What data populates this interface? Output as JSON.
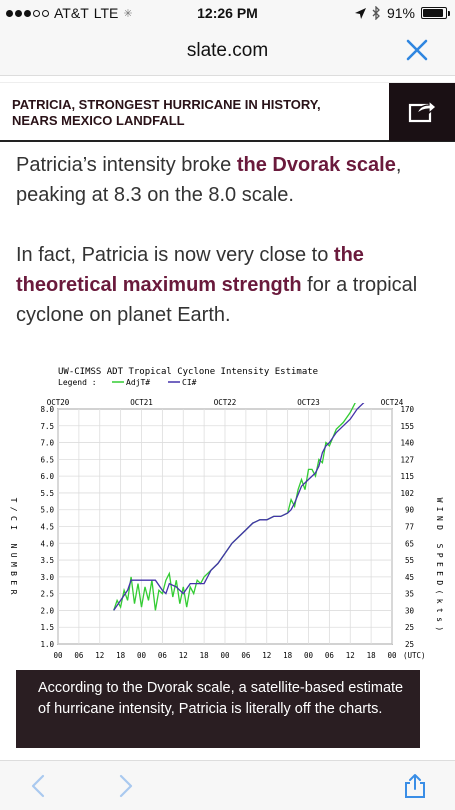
{
  "status": {
    "carrier": "AT&T",
    "network": "LTE",
    "time": "12:26 PM",
    "battery": "91%",
    "battery_level": 0.91
  },
  "browser": {
    "url": "slate.com"
  },
  "article": {
    "title_line1": "PATRICIA, STRONGEST HURRICANE IN HISTORY,",
    "title_line2": "NEARS MEXICO LANDFALL",
    "p1_a": "Patricia’s intensity broke ",
    "p1_link": "the Dvorak scale",
    "p1_b": ", peaking at 8.3 on the 8.0 scale.",
    "p2_a": "In fact, Patricia is now very close to ",
    "p2_link": "the theoretical maximum strength",
    "p2_b": " for a tropical cyclone on planet Earth.",
    "caption": "According to the Dvorak scale, a satellite-based estimate of hurricane intensity, Patricia is literally off the charts."
  },
  "colors": {
    "link": "#6a1a3c",
    "adjt": "#33cc33",
    "ci": "#4433aa",
    "caption_bg": "#2a1e22",
    "nav": "#3a8ee6"
  },
  "chart_data": {
    "type": "line",
    "title": "UW-CIMSS ADT Tropical Cyclone Intensity Estimate",
    "legend_label": "Legend :",
    "ylabel": "T/CI NUMBER",
    "y2label": "WIND SPEED(kts)",
    "xlabel_suffix": "(UTC)",
    "ylim": [
      1.0,
      8.0
    ],
    "y_ticks": [
      "1.0",
      "1.5",
      "2.0",
      "2.5",
      "3.0",
      "3.5",
      "4.0",
      "4.5",
      "5.0",
      "5.5",
      "6.0",
      "6.5",
      "7.0",
      "7.5",
      "8.0"
    ],
    "y2_ticks": [
      "25",
      "25",
      "30",
      "35",
      "45",
      "55",
      "65",
      "77",
      "90",
      "102",
      "115",
      "127",
      "140",
      "155",
      "170"
    ],
    "x_hours": [
      "00",
      "06",
      "12",
      "18",
      "00",
      "06",
      "12",
      "18",
      "00",
      "06",
      "12",
      "18",
      "00",
      "06",
      "12",
      "18",
      "00"
    ],
    "date_labels": [
      {
        "label": "OCT20",
        "hour": 0
      },
      {
        "label": "OCT21",
        "hour": 24
      },
      {
        "label": "OCT22",
        "hour": 48
      },
      {
        "label": "OCT23",
        "hour": 72
      },
      {
        "label": "OCT24",
        "hour": 96
      }
    ],
    "series": [
      {
        "name": "AdjT#",
        "points": [
          [
            16,
            2.0
          ],
          [
            17,
            2.3
          ],
          [
            18,
            2.1
          ],
          [
            19,
            2.6
          ],
          [
            20,
            2.3
          ],
          [
            21,
            3.0
          ],
          [
            22,
            2.2
          ],
          [
            23,
            2.8
          ],
          [
            24,
            2.1
          ],
          [
            25,
            2.7
          ],
          [
            26,
            2.3
          ],
          [
            27,
            2.9
          ],
          [
            28,
            2.0
          ],
          [
            29,
            2.6
          ],
          [
            30,
            2.5
          ],
          [
            31,
            2.9
          ],
          [
            32,
            3.1
          ],
          [
            33,
            2.4
          ],
          [
            34,
            2.9
          ],
          [
            35,
            2.2
          ],
          [
            36,
            2.7
          ],
          [
            37,
            2.1
          ],
          [
            38,
            2.7
          ],
          [
            39,
            2.5
          ],
          [
            40,
            2.9
          ],
          [
            41,
            2.8
          ],
          [
            42,
            3.0
          ],
          [
            44,
            3.2
          ],
          [
            46,
            3.4
          ],
          [
            48,
            3.7
          ],
          [
            50,
            4.0
          ],
          [
            52,
            4.2
          ],
          [
            54,
            4.4
          ],
          [
            56,
            4.6
          ],
          [
            58,
            4.7
          ],
          [
            60,
            4.7
          ],
          [
            62,
            4.8
          ],
          [
            64,
            4.8
          ],
          [
            66,
            4.9
          ],
          [
            67,
            5.3
          ],
          [
            68,
            5.1
          ],
          [
            69,
            5.6
          ],
          [
            70,
            5.9
          ],
          [
            71,
            5.6
          ],
          [
            72,
            6.2
          ],
          [
            73,
            6.2
          ],
          [
            74,
            6.0
          ],
          [
            75,
            6.5
          ],
          [
            76,
            6.4
          ],
          [
            77,
            7.0
          ],
          [
            78,
            6.9
          ],
          [
            80,
            7.4
          ],
          [
            82,
            7.6
          ],
          [
            84,
            7.9
          ],
          [
            86,
            8.3
          ]
        ]
      },
      {
        "name": "CI#",
        "points": [
          [
            16,
            2.0
          ],
          [
            18,
            2.3
          ],
          [
            20,
            2.6
          ],
          [
            21,
            2.9
          ],
          [
            24,
            2.9
          ],
          [
            28,
            2.9
          ],
          [
            30,
            2.6
          ],
          [
            31,
            2.5
          ],
          [
            32,
            2.8
          ],
          [
            34,
            2.7
          ],
          [
            36,
            2.5
          ],
          [
            38,
            2.8
          ],
          [
            42,
            2.8
          ],
          [
            44,
            3.2
          ],
          [
            46,
            3.4
          ],
          [
            48,
            3.7
          ],
          [
            50,
            4.0
          ],
          [
            52,
            4.2
          ],
          [
            54,
            4.4
          ],
          [
            56,
            4.6
          ],
          [
            58,
            4.7
          ],
          [
            60,
            4.7
          ],
          [
            62,
            4.8
          ],
          [
            64,
            4.8
          ],
          [
            66,
            4.9
          ],
          [
            67,
            5.0
          ],
          [
            68,
            5.2
          ],
          [
            70,
            5.7
          ],
          [
            72,
            5.9
          ],
          [
            74,
            6.1
          ],
          [
            75,
            6.3
          ],
          [
            76,
            6.7
          ],
          [
            77,
            6.9
          ],
          [
            78,
            7.0
          ],
          [
            80,
            7.3
          ],
          [
            82,
            7.5
          ],
          [
            84,
            7.7
          ],
          [
            86,
            8.0
          ],
          [
            88,
            8.2
          ]
        ]
      }
    ]
  }
}
